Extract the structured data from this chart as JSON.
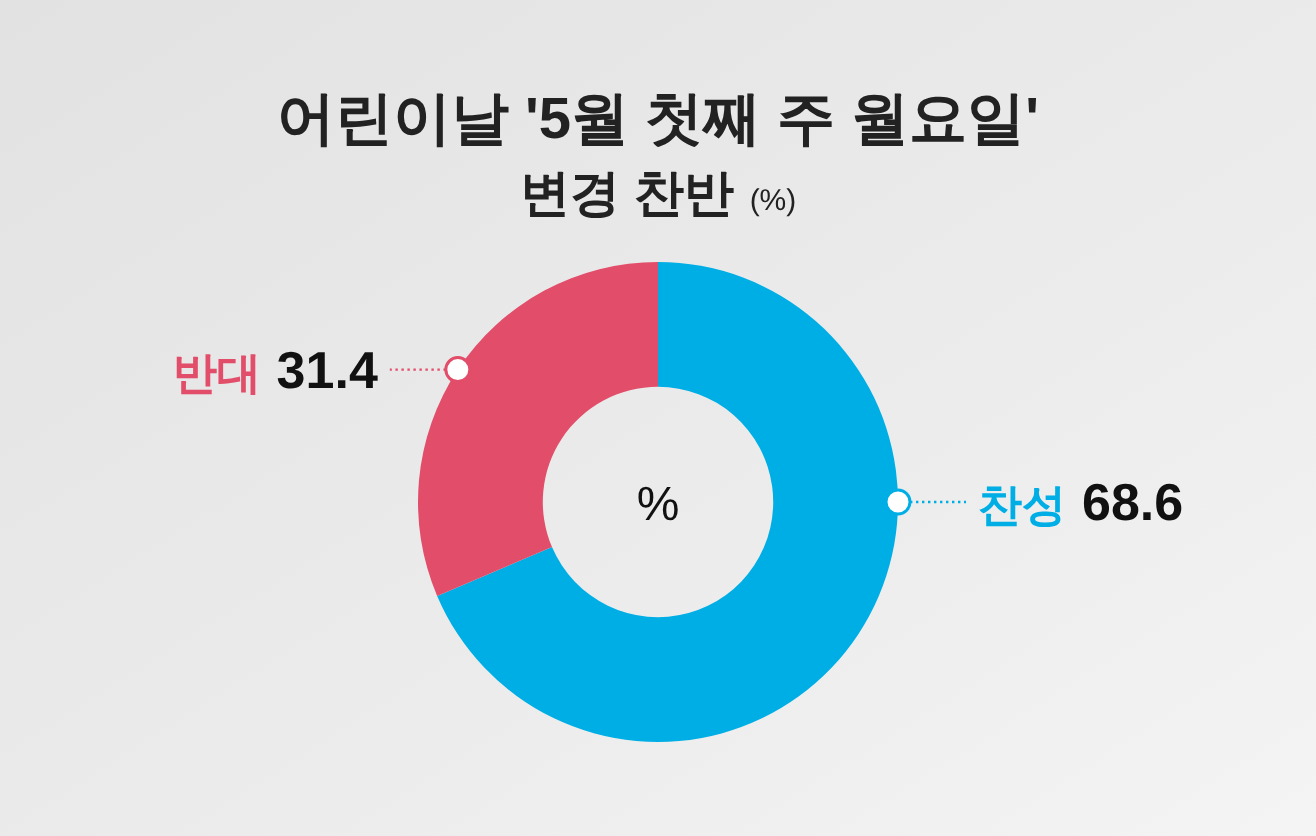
{
  "chart_data": {
    "type": "donut",
    "title": "어린이날 '5월 첫째 주 월요일'\n변경 찬반",
    "subtitle": "(%)",
    "categories": [
      "찬성",
      "반대"
    ],
    "values": [
      68.6,
      31.4
    ],
    "colors": [
      "#00aee6",
      "#e24d6a"
    ],
    "data_labels": true,
    "annotations": [
      "%"
    ]
  }
}
